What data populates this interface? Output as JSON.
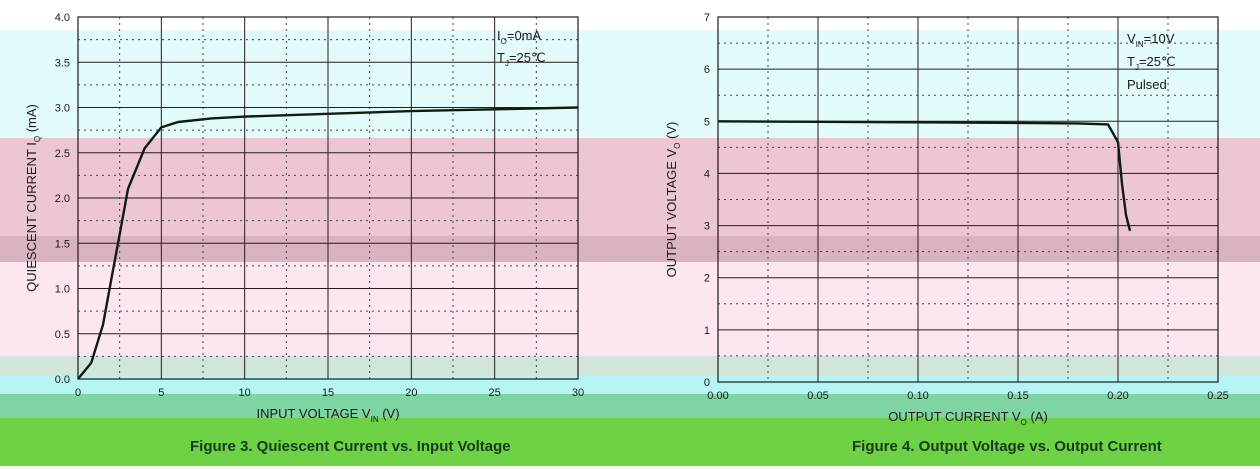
{
  "chart_data": [
    {
      "type": "line",
      "title": "Figure 3. Quiescent Current vs. Input Voltage",
      "xlabel": "INPUT VOLTAGE",
      "xlabel_sub": "IN",
      "xlabel_unit": "(V)",
      "ylabel": "QUIESCENT CURRENT",
      "ylabel_sub": "Q",
      "ylabel_unit": "(mA)",
      "xlim": [
        0,
        30
      ],
      "ylim": [
        0,
        4.0
      ],
      "xticks": [
        "0",
        "5",
        "10",
        "15",
        "20",
        "25",
        "30"
      ],
      "yticks": [
        "0.0",
        "0.5",
        "1.0",
        "1.5",
        "2.0",
        "2.5",
        "3.0",
        "3.5",
        "4.0"
      ],
      "annotations": [
        "I_O=0mA",
        "T_J=25℃"
      ],
      "grid": true,
      "series": [
        {
          "x": [
            0.0,
            0.8,
            1.5,
            2.0,
            2.5,
            3.0,
            4.0,
            5.0,
            6.0,
            8.0,
            10.0,
            15.0,
            20.0,
            25.0,
            30.0
          ],
          "y": [
            0.0,
            0.18,
            0.6,
            1.1,
            1.6,
            2.1,
            2.55,
            2.78,
            2.84,
            2.88,
            2.9,
            2.93,
            2.96,
            2.98,
            3.0
          ]
        }
      ]
    },
    {
      "type": "line",
      "title": "Figure 4. Output Voltage vs. Output Current",
      "xlabel": "OUTPUT CURRENT",
      "xlabel_sub": "O",
      "xlabel_unit": "(A)",
      "ylabel": "OUTPUT VOLTAGE",
      "ylabel_sub": "O",
      "ylabel_unit": "(V)",
      "xlim": [
        0,
        0.25
      ],
      "ylim": [
        0,
        7
      ],
      "xticks": [
        "0.00",
        "0.05",
        "0.10",
        "0.15",
        "0.20",
        "0.25"
      ],
      "yticks": [
        "0",
        "1",
        "2",
        "3",
        "4",
        "5",
        "6",
        "7"
      ],
      "annotations": [
        "V_IN=10V",
        "T_J=25℃",
        "Pulsed"
      ],
      "grid": true,
      "series": [
        {
          "x": [
            0.0,
            0.05,
            0.1,
            0.15,
            0.18,
            0.195,
            0.2,
            0.202,
            0.204,
            0.206
          ],
          "y": [
            5.0,
            4.99,
            4.98,
            4.97,
            4.96,
            4.94,
            4.6,
            3.8,
            3.2,
            2.9
          ]
        }
      ]
    }
  ]
}
